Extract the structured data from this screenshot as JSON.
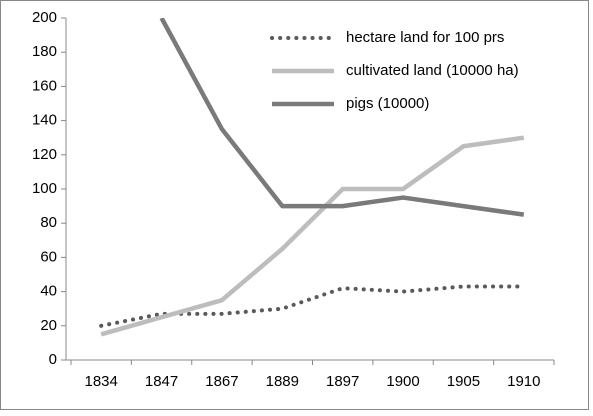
{
  "chart_data": {
    "type": "line",
    "categories": [
      "1834",
      "1847",
      "1867",
      "1889",
      "1897",
      "1900",
      "1905",
      "1910"
    ],
    "series": [
      {
        "name": "hectare land for 100 prs",
        "color": "#5a5a5a",
        "dash": "dotted",
        "values": [
          20,
          27,
          27,
          30,
          42,
          40,
          43,
          43
        ]
      },
      {
        "name": "cultivated land (10000 ha)",
        "color": "#bdbdbd",
        "dash": "solid",
        "values": [
          15,
          25,
          35,
          65,
          100,
          100,
          125,
          130
        ]
      },
      {
        "name": "pigs (10000)",
        "color": "#7a7a7a",
        "dash": "solid",
        "values": [
          null,
          200,
          135,
          90,
          90,
          95,
          90,
          85
        ]
      }
    ],
    "ylim": [
      0,
      200
    ],
    "yticks": [
      0,
      20,
      40,
      60,
      80,
      100,
      120,
      140,
      160,
      180,
      200
    ],
    "grid": false,
    "legend": "top-right"
  }
}
